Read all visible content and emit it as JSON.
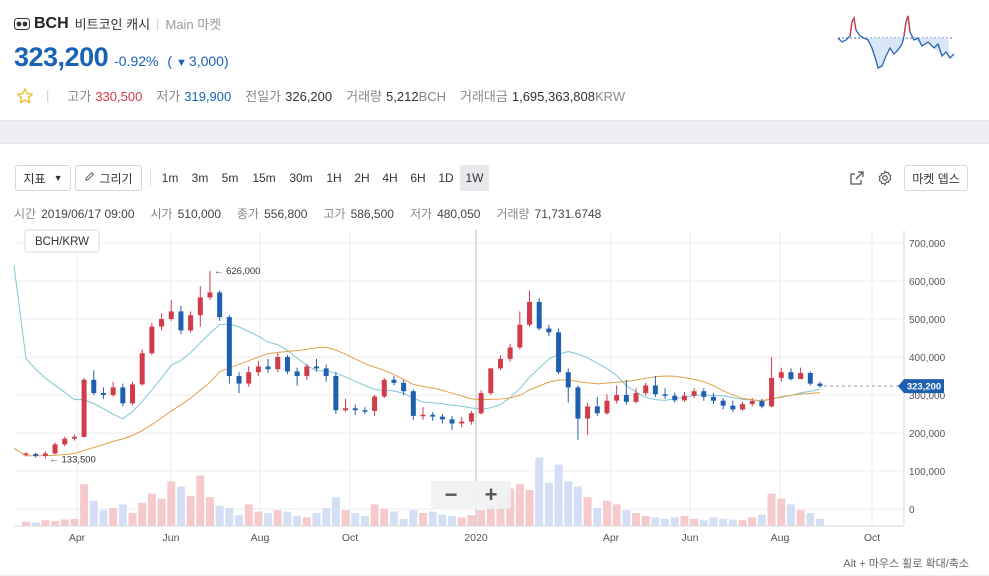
{
  "coin": {
    "symbol": "BCH",
    "name": "비트코인 캐시",
    "separator": "|",
    "market": "Main 마켓",
    "price": "323,200",
    "change_pct": "-0.92%",
    "change_open": "(",
    "change_arrow": "▼",
    "change_amount": "3,000)"
  },
  "stats": {
    "separator": "|",
    "high_label": "고가",
    "high_value": "330,500",
    "low_label": "저가",
    "low_value": "319,900",
    "prev_label": "전일가",
    "prev_value": "326,200",
    "volume_label": "거래량",
    "volume_value": "5,212",
    "volume_unit": "BCH",
    "amount_label": "거래대금",
    "amount_value": "1,695,363,808",
    "amount_unit": "KRW"
  },
  "toolbar": {
    "indicator_label": "지표",
    "draw_label": "그리기",
    "intervals": [
      "1m",
      "3m",
      "5m",
      "15m",
      "30m",
      "1H",
      "2H",
      "4H",
      "6H",
      "1D",
      "1W"
    ],
    "active_interval": "1W",
    "depth_label": "마켓 뎁스"
  },
  "ohlc": {
    "time_label": "시간",
    "time_value": "2019/06/17 09:00",
    "open_label": "시가",
    "open_value": "510,000",
    "close_label": "종가",
    "close_value": "556,800",
    "high_label": "고가",
    "high_value": "586,500",
    "low_label": "저가",
    "low_value": "480,050",
    "volume_label": "거래량",
    "volume_value": "71,731.6748"
  },
  "chart_data": {
    "type": "candlestick",
    "pair_label": "BCH/KRW",
    "current_price_label": "323,200",
    "max_marker": "626,000",
    "min_marker": "133,500",
    "y_ticks": [
      700000,
      600000,
      500000,
      400000,
      300000,
      200000,
      100000,
      0
    ],
    "y_tick_labels": [
      "700,000",
      "600,000",
      "500,000",
      "400,000",
      "300,000",
      "200,000",
      "100,000",
      "0"
    ],
    "x_tick_labels": [
      "Apr",
      "Jun",
      "Aug",
      "Oct",
      "2020",
      "Apr",
      "Jun",
      "Aug",
      "Oct"
    ],
    "colors": {
      "up": "#d23b4a",
      "down": "#1f5fb0",
      "ma_short": "#7ec7d6",
      "ma_long": "#e3a04a",
      "vol_up": "#f5c4c6",
      "vol_down": "#cfdcf5"
    }
  },
  "zoom": {
    "minus": "−",
    "plus": "+",
    "hint": "Alt + 마우스 휠로 확대/축소"
  }
}
